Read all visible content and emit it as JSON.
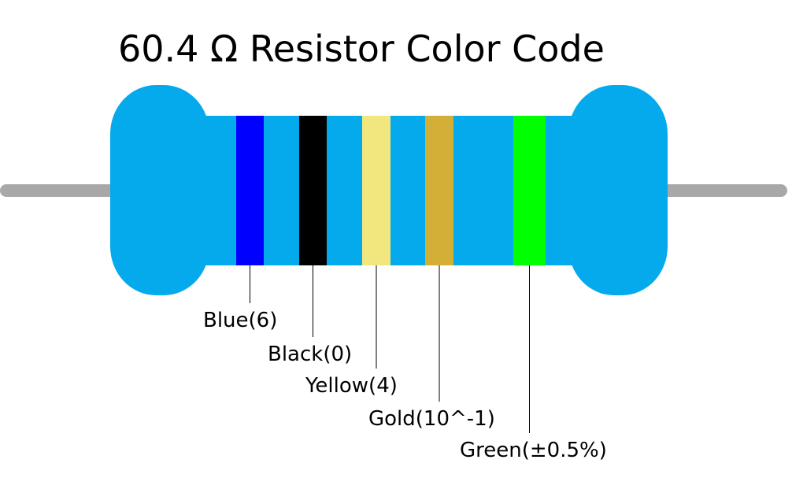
{
  "title": "60.4 Ω Resistor Color Code",
  "bands": [
    {
      "label": "Blue(6)",
      "color": "#0000ff"
    },
    {
      "label": "Black(0)",
      "color": "#000000"
    },
    {
      "label": "Yellow(4)",
      "color": "#f2e67e"
    },
    {
      "label": "Gold(10^-1)",
      "color": "#d4af37"
    },
    {
      "label": "Green(±0.5%)",
      "color": "#00ff00"
    }
  ]
}
